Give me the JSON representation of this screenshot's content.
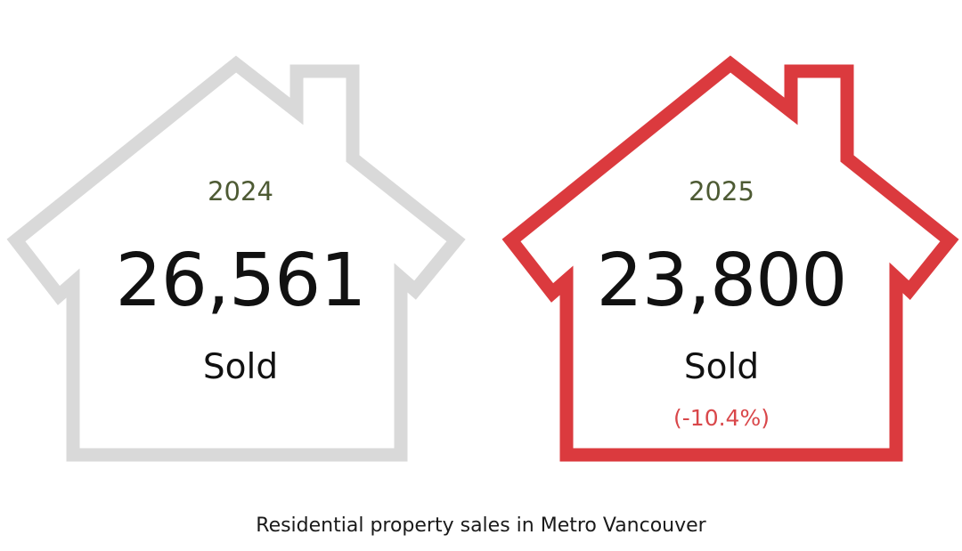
{
  "colors": {
    "house_2024_outline": "#d9d9d9",
    "house_2025_outline": "#db3a3e",
    "year_text": "#4d5a33",
    "change_text": "#d9474a"
  },
  "cards": [
    {
      "year": "2024",
      "value": "26,561",
      "label": "Sold"
    },
    {
      "year": "2025",
      "value": "23,800",
      "label": "Sold",
      "change": "(-10.4%)"
    }
  ],
  "caption": "Residential property sales in Metro Vancouver"
}
